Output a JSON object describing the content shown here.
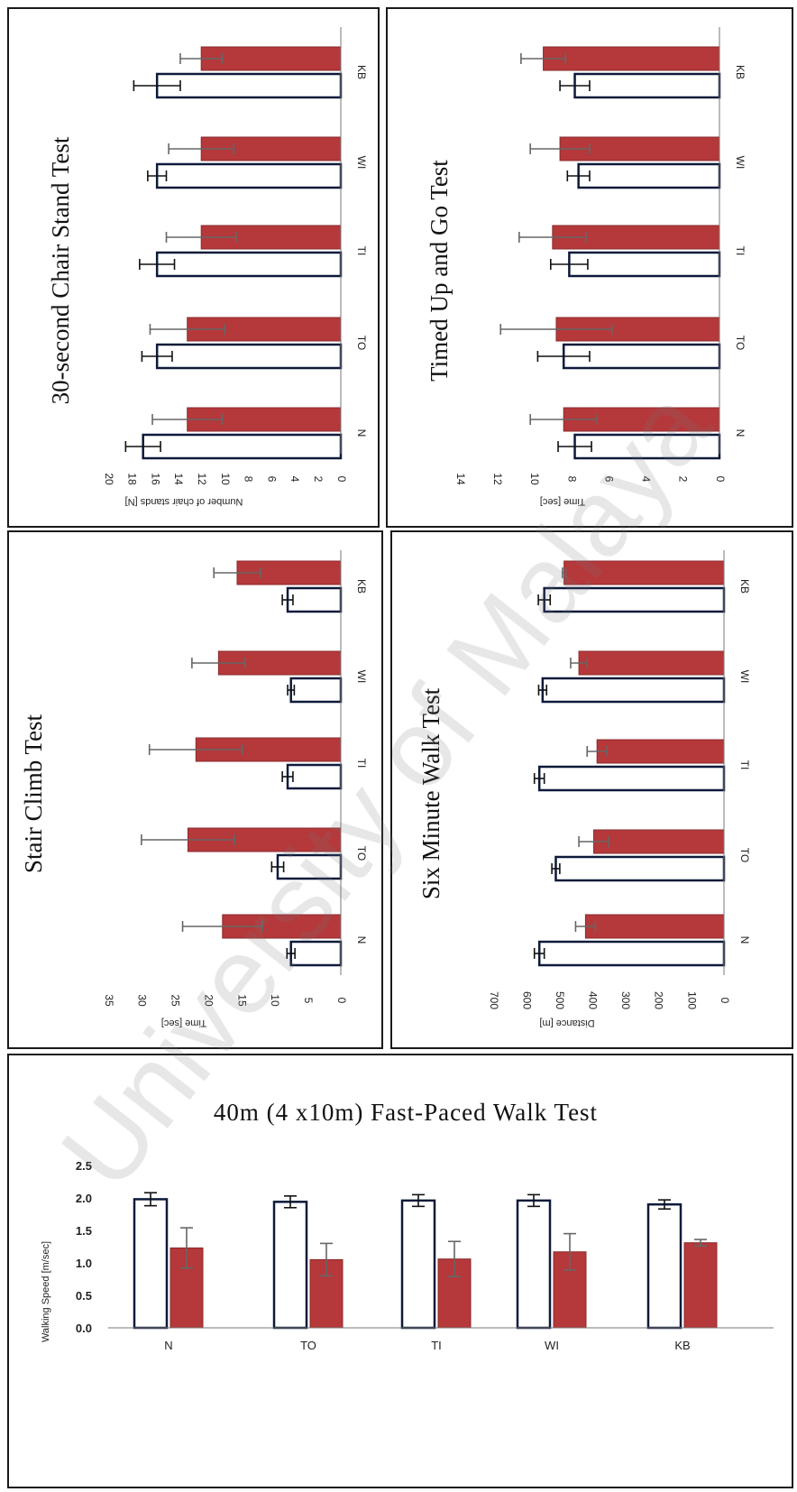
{
  "chart_data": [
    {
      "id": "chair",
      "type": "bar",
      "title": "30-second Chair Stand Test",
      "ylabel": "Number of chair stands [N]",
      "categories": [
        "N",
        "TO",
        "TI",
        "WI",
        "KB"
      ],
      "ylim": [
        0,
        20
      ],
      "yticks": [
        0,
        2,
        4,
        6,
        8,
        10,
        12,
        14,
        16,
        18,
        20
      ],
      "series": [
        {
          "values": [
            17.0,
            15.8,
            15.8,
            15.8,
            15.8
          ],
          "errors": [
            1.5,
            1.3,
            1.5,
            0.8,
            2.0
          ],
          "color": "#ffffff"
        },
        {
          "values": [
            13.2,
            13.2,
            12.0,
            12.0,
            12.0
          ],
          "errors": [
            3.0,
            3.2,
            3.0,
            2.8,
            1.8
          ],
          "color": "#b5383a"
        }
      ],
      "orientation": "rotated"
    },
    {
      "id": "tug",
      "type": "bar",
      "title": "Timed Up and Go Test",
      "ylabel": "Time [sec]",
      "categories": [
        "N",
        "TO",
        "TI",
        "WI",
        "KB"
      ],
      "ylim": [
        0,
        14
      ],
      "yticks": [
        0,
        2,
        4,
        6,
        8,
        10,
        12,
        14
      ],
      "series": [
        {
          "values": [
            7.8,
            8.4,
            8.1,
            7.6,
            7.8
          ],
          "errors": [
            0.9,
            1.4,
            1.0,
            0.6,
            0.8
          ],
          "color": "#ffffff"
        },
        {
          "values": [
            8.4,
            8.8,
            9.0,
            8.6,
            9.5
          ],
          "errors": [
            1.8,
            3.0,
            1.8,
            1.6,
            1.2
          ],
          "color": "#b5383a"
        }
      ],
      "orientation": "rotated"
    },
    {
      "id": "stair",
      "type": "bar",
      "title": "Stair Climb Test",
      "ylabel": "Time [sec]",
      "categories": [
        "N",
        "TO",
        "TI",
        "WI",
        "KB"
      ],
      "ylim": [
        0,
        35
      ],
      "yticks": [
        0,
        5,
        10,
        15,
        20,
        25,
        30,
        35
      ],
      "series": [
        {
          "values": [
            7.5,
            9.5,
            8.0,
            7.5,
            8.0
          ],
          "errors": [
            0.6,
            0.9,
            0.8,
            0.5,
            0.8
          ],
          "color": "#ffffff"
        },
        {
          "values": [
            17.8,
            23.0,
            21.8,
            18.4,
            15.6
          ],
          "errors": [
            6.0,
            7.0,
            7.0,
            4.0,
            3.5
          ],
          "color": "#b5383a"
        }
      ],
      "orientation": "rotated"
    },
    {
      "id": "sixmin",
      "type": "bar",
      "title": "Six Minute Walk Test",
      "ylabel": "Distance [m]",
      "categories": [
        "N",
        "TO",
        "TI",
        "WI",
        "KB"
      ],
      "ylim": [
        0,
        700
      ],
      "yticks": [
        0,
        100,
        200,
        300,
        400,
        500,
        600,
        700
      ],
      "series": [
        {
          "values": [
            560,
            510,
            560,
            550,
            545
          ],
          "errors": [
            15,
            12,
            15,
            12,
            18
          ],
          "color": "#ffffff"
        },
        {
          "values": [
            420,
            395,
            385,
            440,
            485
          ],
          "errors": [
            30,
            45,
            30,
            25,
            5
          ],
          "color": "#b5383a"
        }
      ],
      "orientation": "rotated"
    },
    {
      "id": "walk40",
      "type": "bar",
      "title": "40m (4 x10m) Fast-Paced Walk Test",
      "ylabel": "Walking Speed [m/sec]",
      "categories": [
        "N",
        "TO",
        "TI",
        "WI",
        "KB"
      ],
      "ylim": [
        0,
        2.5
      ],
      "yticks": [
        "0.0",
        "0.5",
        "1.0",
        "1.5",
        "2.0",
        "2.5"
      ],
      "series": [
        {
          "values": [
            1.98,
            1.94,
            1.96,
            1.96,
            1.9
          ],
          "errors": [
            0.1,
            0.09,
            0.09,
            0.09,
            0.07
          ],
          "color": "#ffffff"
        },
        {
          "values": [
            1.23,
            1.05,
            1.06,
            1.17,
            1.31
          ],
          "errors": [
            0.31,
            0.25,
            0.27,
            0.28,
            0.05
          ],
          "color": "#b5383a"
        }
      ],
      "orientation": "vertical"
    }
  ],
  "watermark": "University of Malaya"
}
